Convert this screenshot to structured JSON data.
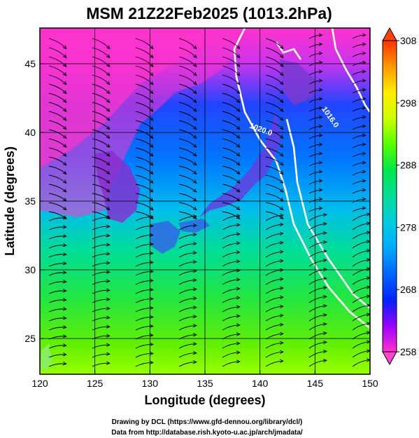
{
  "chart_data": {
    "type": "heatmap",
    "title": "MSM 21Z22Feb2025 (1013.2hPa)",
    "xlabel": "Longitude (degrees)",
    "ylabel": "Latitude  (degrees)",
    "xlim": [
      120,
      150
    ],
    "ylim": [
      22.4,
      47.6
    ],
    "x_ticks": [
      120,
      125,
      130,
      135,
      140,
      145,
      150
    ],
    "y_ticks": [
      25,
      30,
      35,
      40,
      45
    ],
    "x_tick_labels": [
      "120",
      "125",
      "130",
      "135",
      "140",
      "145",
      "150"
    ],
    "y_tick_labels": [
      "25",
      "30",
      "35",
      "40",
      "45"
    ],
    "grid": true,
    "colorbar": {
      "range": [
        258,
        308
      ],
      "ticks": [
        258,
        268,
        278,
        288,
        298,
        308
      ],
      "tick_labels": [
        "258",
        "268",
        "278",
        "288",
        "298",
        "308"
      ],
      "colors": [
        "#ff33cc",
        "#9900ff",
        "#0022ff",
        "#0066ff",
        "#00aaff",
        "#00ccdd",
        "#00dd99",
        "#00e64d",
        "#55ff00",
        "#ccff00",
        "#ffee00",
        "#ff9900",
        "#ff3300"
      ]
    },
    "contours": [
      {
        "value": 1020.0,
        "label": "1020.0"
      },
      {
        "value": 1016.0,
        "label": "1016.0"
      }
    ],
    "overlay": "wind streamlines"
  },
  "credits": {
    "line1": "Drawing by DCL (https://www.gfd-dennou.org/library/dcl/)",
    "line2": "Data from http://database.rish.kyoto-u.ac.jp/arch/jmadata/"
  }
}
